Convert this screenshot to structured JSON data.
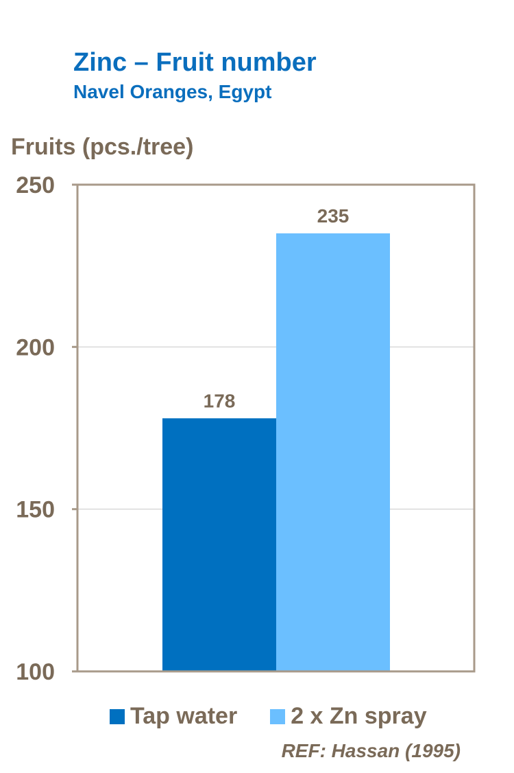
{
  "chart_data": {
    "type": "bar",
    "title": "Zinc – Fruit number",
    "subtitle": "Navel Oranges, Egypt",
    "ylabel": "Fruits (pcs./tree)",
    "xlabel": "",
    "ylim": [
      100,
      250
    ],
    "yticks": [
      100,
      150,
      200,
      250
    ],
    "grid": true,
    "legend_position": "bottom",
    "series": [
      {
        "name": "Tap water",
        "values": [
          178
        ],
        "color": "#0070C0"
      },
      {
        "name": "2 x Zn spray",
        "values": [
          235
        ],
        "color": "#6BBFFF"
      }
    ],
    "data_labels": [
      "178",
      "235"
    ],
    "reference": "REF: Hassan (1995)"
  },
  "colors": {
    "title": "#0A6EBD",
    "text": "#7A6A58",
    "frame": "#A89A8A",
    "grid": "#C8C8C8"
  }
}
